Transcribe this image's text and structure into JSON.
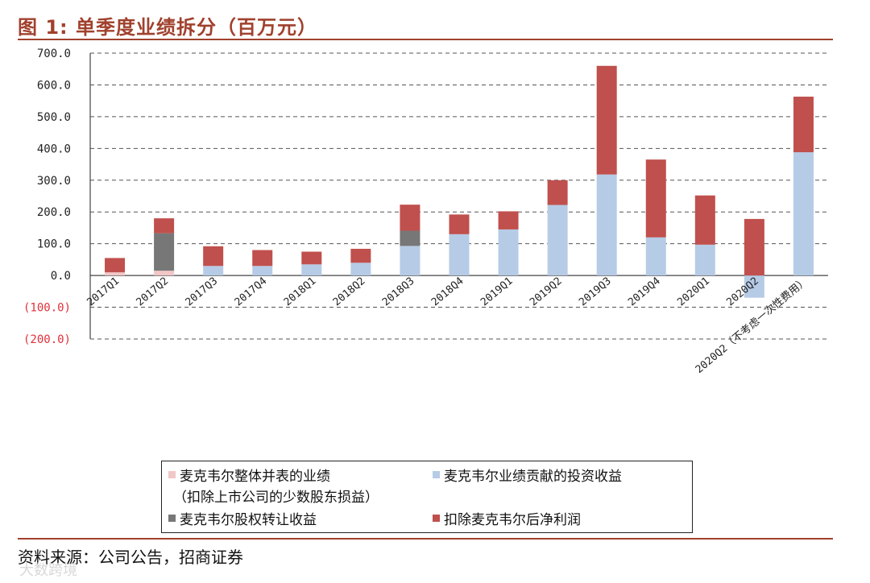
{
  "header": {
    "title": "图 1:  单季度业绩拆分（百万元）"
  },
  "footer": {
    "source": "资料来源：公司公告，招商证券",
    "watermark": "大数跨境"
  },
  "colors": {
    "accent": "#a0412d",
    "pink": "#f2c7c7",
    "blue": "#b6cbe6",
    "gray": "#777777",
    "red": "#c0504d",
    "neg_tick": "#e0303a"
  },
  "chart_data": {
    "type": "bar",
    "stacked": true,
    "ylim": [
      -200,
      700
    ],
    "yticks": [
      -200,
      -100,
      0,
      100,
      200,
      300,
      400,
      500,
      600,
      700
    ],
    "ytick_labels": [
      "(200.0)",
      "(100.0)",
      "0.0",
      "100.0",
      "200.0",
      "300.0",
      "400.0",
      "500.0",
      "600.0",
      "700.0"
    ],
    "grid": true,
    "legend_position": "bottom",
    "categories": [
      "2017Q1",
      "2017Q2",
      "2017Q3",
      "2017Q4",
      "2018Q1",
      "2018Q2",
      "2018Q3",
      "2018Q4",
      "2019Q1",
      "2019Q2",
      "2019Q3",
      "2019Q4",
      "2020Q1",
      "2020Q2",
      "2020Q2（不考虑一次性费用）"
    ],
    "series": [
      {
        "name": "麦克韦尔整体并表的业绩",
        "name_line2": "（扣除上市公司的少数股东损益）",
        "color": "#f2c7c7",
        "values": [
          10,
          15,
          0,
          0,
          0,
          0,
          0,
          0,
          0,
          0,
          0,
          0,
          0,
          0,
          0
        ]
      },
      {
        "name": "麦克韦尔业绩贡献的投资收益",
        "color": "#b6cbe6",
        "values": [
          0,
          0,
          30,
          30,
          35,
          40,
          93,
          130,
          145,
          222,
          318,
          120,
          97,
          -70,
          388
        ]
      },
      {
        "name": "麦克韦尔股权转让收益",
        "color": "#777777",
        "values": [
          0,
          118,
          0,
          0,
          0,
          0,
          48,
          0,
          0,
          0,
          0,
          0,
          0,
          0,
          0
        ]
      },
      {
        "name": "扣除麦克韦尔后净利润",
        "color": "#c0504d",
        "values": [
          45,
          47,
          62,
          50,
          40,
          44,
          82,
          62,
          57,
          78,
          342,
          245,
          155,
          178,
          175
        ]
      }
    ]
  }
}
